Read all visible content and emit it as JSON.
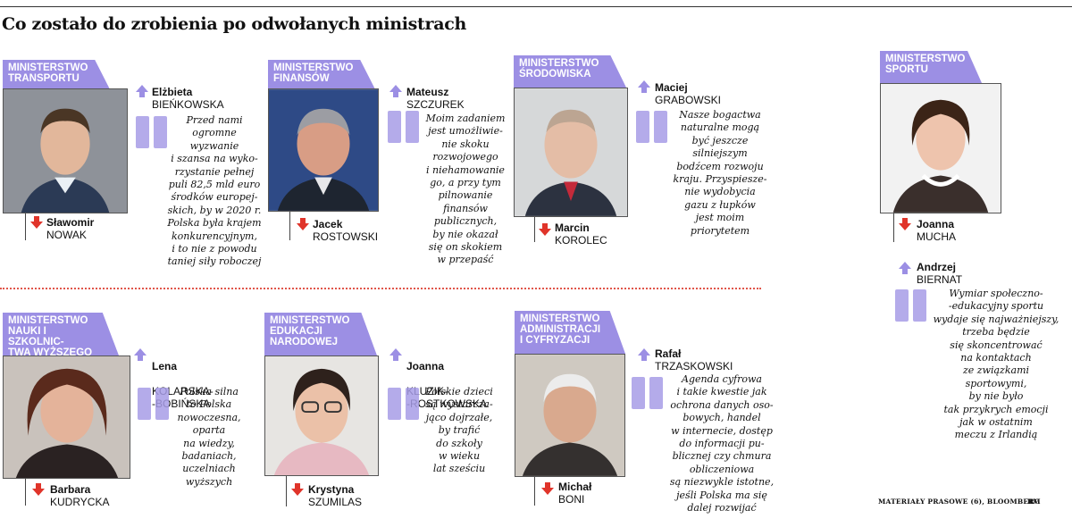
{
  "title": "Co zostało do zrobienia po odwołanych ministrach",
  "colors": {
    "tag": "#9c8fe4",
    "up_arrow": "#9c8fe4",
    "down_arrow": "#e0342a",
    "quote_mark": "#a79ce6",
    "separator": "#e0554a"
  },
  "ministries": [
    {
      "tag": "MINISTERSTWO\nTRANSPORTU",
      "new_minister": {
        "first": "Elżbieta",
        "last": "BIEŃKOWSKA"
      },
      "old_minister": {
        "first": "Sławomir",
        "last": "NOWAK"
      },
      "quote": "Przed nami\nogromne\nwyzwanie\ni szansa na wyko-\nrzystanie pełnej\npuli 82,5 mld euro\nśrodków europej-\nskich, by w 2020 r.\nPolska była krajem\nkonkurencyjnym,\ni to nie z powodu\ntaniej siły roboczej"
    },
    {
      "tag": "MINISTERSTWO\nFINANSÓW",
      "new_minister": {
        "first": "Mateusz",
        "last": "SZCZUREK"
      },
      "old_minister": {
        "first": "Jacek",
        "last": "ROSTOWSKI"
      },
      "quote": "Moim zadaniem\njest umożliwie-\nnie skoku\nrozwojowego\ni niehamowanie\ngo, a przy tym\npilnowanie\nfinansów\npublicznych,\nby nie okazał\nsię on skokiem\nw przepaść"
    },
    {
      "tag": "MINISTERSTWO\nŚRODOWISKA",
      "new_minister": {
        "first": "Maciej",
        "last": "GRABOWSKI"
      },
      "old_minister": {
        "first": "Marcin",
        "last": "KOROLEC"
      },
      "quote": "Nasze bogactwa\nnaturalne mogą\nbyć jeszcze\nsilniejszym\nbodźcem rozwoju\nkraju. Przyspiesze-\nnie wydobycia\ngazu z łupków\njest moim\npriorytetem"
    },
    {
      "tag": "MINISTERSTWO\nSPORTU",
      "new_minister": {
        "first": "Andrzej",
        "last": "BIERNAT"
      },
      "old_minister": {
        "first": "Joanna",
        "last": "MUCHA"
      },
      "quote": "Wymiar społeczno-\n-edukacyjny sportu\nwydaje się najważniejszy,\ntrzeba będzie\nsię skoncentrować\nna kontaktach\nze związkami\nsportowymi,\nby nie było\ntak przykrych emocji\njak w ostatnim\nmeczu z Irlandią"
    },
    {
      "tag": "MINISTERSTWO\nNAUKI I SZKOLNIC-\nTWA WYŻSZEGO",
      "new_minister": {
        "first": "Lena",
        "last": "KOLARSKA-\n-BOBIŃSKA"
      },
      "old_minister": {
        "first": "Barbara",
        "last": "KUDRYCKA"
      },
      "quote": "Polska silna\nto Polska\nnowoczesna,\noparta\nna wiedzy,\nbadaniach,\nuczelniach\nwyższych"
    },
    {
      "tag": "MINISTERSTWO\nEDUKACJI\nNARODOWEJ",
      "new_minister": {
        "first": "Joanna",
        "last": "KLUZIK-\n-ROSTKOWSKA"
      },
      "old_minister": {
        "first": "Krystyna",
        "last": "SZUMILAS"
      },
      "quote": "Polskie dzieci\nsą wystarcza-\njąco dojrzałe,\nby trafić\ndo szkoły\nw wieku\nlat sześciu"
    },
    {
      "tag": "MINISTERSTWO\nADMINISTRACJI\nI CYFRYZACJI",
      "new_minister": {
        "first": "Rafał",
        "last": "TRZASKOWSKI"
      },
      "old_minister": {
        "first": "Michał",
        "last": "BONI"
      },
      "quote": "Agenda cyfrowa\ni takie kwestie jak\nochrona danych oso-\nbowych, handel\nw internecie, dostęp\ndo informacji pu-\nblicznej czy chmura\nobliczeniowa\nsą niezwykle istotne,\njeśli Polska ma się\ndalej rozwijać"
    }
  ],
  "credit": "MATERIAŁY PRASOWE (6), BLOOMBERG",
  "initials": "RM"
}
